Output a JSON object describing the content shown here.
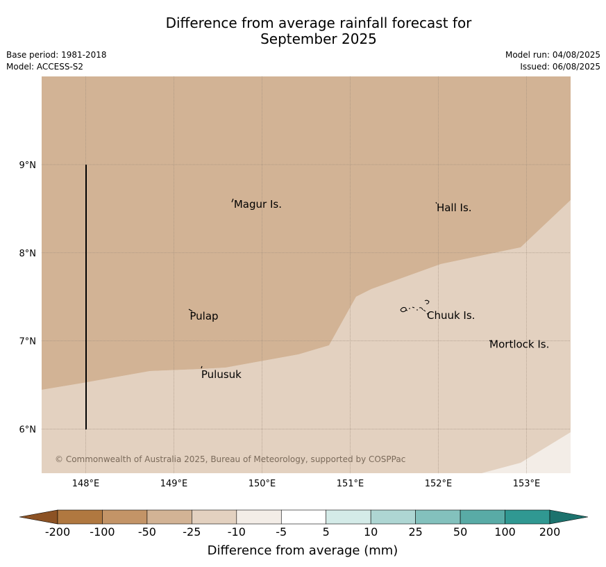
{
  "title": {
    "line1": "Difference from average rainfall forecast for",
    "line2": "September 2025"
  },
  "meta": {
    "base_period": "Base period: 1981-2018",
    "model": "Model: ACCESS-S2",
    "model_run": "Model run: 04/08/2025",
    "issued": "Issued: 06/08/2025"
  },
  "map": {
    "lon_range": [
      147.5,
      153.5
    ],
    "lat_range": [
      5.5,
      10.0
    ],
    "lon_ticks": [
      {
        "value": 148,
        "label": "148°E"
      },
      {
        "value": 149,
        "label": "149°E"
      },
      {
        "value": 150,
        "label": "150°E"
      },
      {
        "value": 151,
        "label": "151°E"
      },
      {
        "value": 152,
        "label": "152°E"
      },
      {
        "value": 153,
        "label": "153°E"
      }
    ],
    "lat_ticks": [
      {
        "value": 9,
        "label": "9°N"
      },
      {
        "value": 8,
        "label": "8°N"
      },
      {
        "value": 7,
        "label": "7°N"
      },
      {
        "value": 6,
        "label": "6°N"
      }
    ],
    "places": [
      {
        "name": "Magur Is.",
        "lon": 149.68,
        "lat": 8.55
      },
      {
        "name": "Hall Is.",
        "lon": 151.98,
        "lat": 8.51
      },
      {
        "name": "Pulap",
        "lon": 149.18,
        "lat": 7.28
      },
      {
        "name": "Chuuk Is.",
        "lon": 151.87,
        "lat": 7.29
      },
      {
        "name": "Mortlock Is.",
        "lon": 152.58,
        "lat": 6.96
      },
      {
        "name": "Pulusuk",
        "lon": 149.31,
        "lat": 6.62
      }
    ],
    "copyright": "© Commonwealth of Australia 2025, Bureau of Meteorology, supported by COSPPac",
    "colors": {
      "band_-50_-25": "#d2b395",
      "band_-25_-10": "#e3d1c0",
      "band_-10_-5": "#f3ede7",
      "grid": "#9b8a7a"
    }
  },
  "colorbar": {
    "title": "Difference from average (mm)",
    "labels": [
      "-200",
      "-100",
      "-50",
      "-25",
      "-10",
      "-5",
      "5",
      "10",
      "25",
      "50",
      "100",
      "200"
    ],
    "colors": [
      "#8c5224",
      "#b07840",
      "#c39467",
      "#d2b395",
      "#e3d1c0",
      "#f3ede7",
      "#ffffff",
      "#d4ebe8",
      "#aed6d3",
      "#83c1bd",
      "#59aba6",
      "#309892",
      "#1c726d"
    ]
  }
}
